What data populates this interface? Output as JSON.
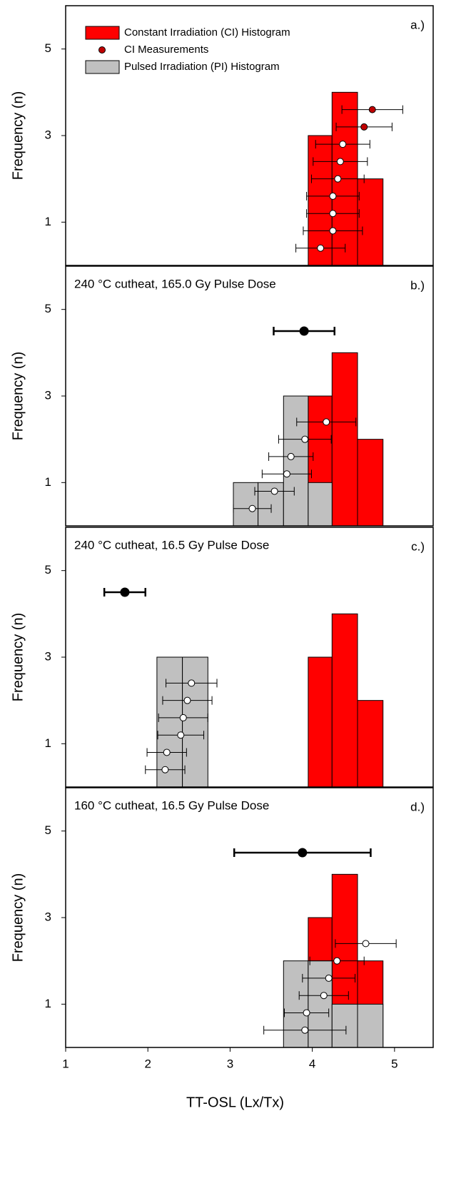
{
  "chart_data": [
    {
      "type": "histogram",
      "panel_label": "a.)",
      "ylabel": "Frequency (n)",
      "xlim": [
        1,
        5.47
      ],
      "ylim": [
        0,
        6
      ],
      "yticks": [
        1,
        3,
        5
      ],
      "legend": [
        {
          "name": "Constant Irradiation (CI) Histogram",
          "color": "#ff0000",
          "marker": "rect"
        },
        {
          "name": "CI Measurements",
          "color": "#c00000",
          "marker": "circle"
        },
        {
          "name": "Pulsed Irradiation (PI) Histogram",
          "color": "#c0c0c0",
          "marker": "rect"
        }
      ],
      "series": [
        {
          "color": "#ff0000",
          "bins": [
            3.95,
            4.24,
            4.55,
            4.86
          ],
          "counts": [
            3,
            4,
            2
          ]
        }
      ],
      "points": {
        "x": [
          4.1,
          4.25,
          4.25,
          4.25,
          4.31,
          4.34,
          4.37,
          4.63,
          4.73
        ],
        "values": [
          0.4,
          0.8,
          1.2,
          1.6,
          2.0,
          2.4,
          2.8,
          3.2,
          3.6
        ],
        "errors": [
          0.3,
          0.36,
          0.32,
          0.32,
          0.32,
          0.33,
          0.33,
          0.34,
          0.37
        ],
        "colors": [
          "#ffffff",
          "#ffffff",
          "#ffffff",
          "#ffffff",
          "#ffffff",
          "#ffffff",
          "#ffffff",
          "#c00000",
          "#c00000"
        ]
      }
    },
    {
      "type": "histogram",
      "panel_label": "b.)",
      "title": "240 °C cutheat, 165.0 Gy Pulse Dose",
      "ylabel": "Frequency (n)",
      "xlim": [
        1,
        5.47
      ],
      "ylim": [
        0,
        6
      ],
      "yticks": [
        1,
        3,
        5
      ],
      "series": [
        {
          "color": "#ff0000",
          "bins": [
            3.95,
            4.24,
            4.55,
            4.86
          ],
          "counts": [
            3,
            4,
            2
          ]
        },
        {
          "color": "#c0c0c0",
          "bins": [
            3.04,
            3.34,
            3.65,
            3.95,
            4.24
          ],
          "counts": [
            1,
            1,
            3,
            1
          ]
        }
      ],
      "points": {
        "x": [
          3.27,
          3.54,
          3.69,
          3.74,
          3.91,
          4.17
        ],
        "values": [
          0.4,
          0.8,
          1.2,
          1.6,
          2.0,
          2.4
        ],
        "errors": [
          0.23,
          0.24,
          0.3,
          0.27,
          0.32,
          0.36
        ],
        "colors": [
          "#ffffff",
          "#ffffff",
          "#ffffff",
          "#ffffff",
          "#ffffff",
          "#ffffff"
        ]
      },
      "summary": {
        "x": 3.9,
        "value": 4.5,
        "error": 0.37,
        "color": "#000000"
      }
    },
    {
      "type": "histogram",
      "panel_label": "c.)",
      "title": "240 °C cutheat, 16.5 Gy Pulse Dose",
      "ylabel": "Frequency (n)",
      "xlim": [
        1,
        5.47
      ],
      "ylim": [
        0,
        6
      ],
      "yticks": [
        1,
        3,
        5
      ],
      "series": [
        {
          "color": "#ff0000",
          "bins": [
            3.95,
            4.24,
            4.55,
            4.86
          ],
          "counts": [
            3,
            4,
            2
          ]
        },
        {
          "color": "#c0c0c0",
          "bins": [
            2.11,
            2.42,
            2.73
          ],
          "counts": [
            3,
            3
          ]
        }
      ],
      "points": {
        "x": [
          2.21,
          2.23,
          2.4,
          2.43,
          2.48,
          2.53
        ],
        "values": [
          0.4,
          0.8,
          1.2,
          1.6,
          2.0,
          2.4
        ],
        "errors": [
          0.24,
          0.24,
          0.28,
          0.3,
          0.3,
          0.31
        ],
        "colors": [
          "#ffffff",
          "#ffffff",
          "#ffffff",
          "#ffffff",
          "#ffffff",
          "#ffffff"
        ]
      },
      "summary": {
        "x": 1.72,
        "value": 4.5,
        "error": 0.25,
        "color": "#000000"
      }
    },
    {
      "type": "histogram",
      "panel_label": "d.)",
      "title": "160 °C cutheat, 16.5 Gy Pulse Dose",
      "ylabel": "Frequency (n)",
      "xlabel": "TT-OSL (Lx/Tx)",
      "xlim": [
        1,
        5.47
      ],
      "ylim": [
        0,
        6
      ],
      "yticks": [
        1,
        3,
        5
      ],
      "xticks": [
        1,
        2,
        3,
        4,
        5
      ],
      "series": [
        {
          "color": "#ff0000",
          "bins": [
            3.95,
            4.24,
            4.55,
            4.86
          ],
          "counts": [
            3,
            4,
            2
          ]
        },
        {
          "color": "#c0c0c0",
          "bins": [
            3.65,
            3.95,
            4.24,
            4.55,
            4.86
          ],
          "counts": [
            2,
            2,
            1,
            1
          ]
        }
      ],
      "points": {
        "x": [
          3.91,
          3.93,
          4.14,
          4.2,
          4.3,
          4.65
        ],
        "values": [
          0.4,
          0.8,
          1.2,
          1.6,
          2.0,
          2.4
        ],
        "errors": [
          0.5,
          0.27,
          0.3,
          0.32,
          0.33,
          0.37
        ],
        "colors": [
          "#ffffff",
          "#ffffff",
          "#ffffff",
          "#ffffff",
          "#ffffff",
          "#ffffff"
        ]
      },
      "summary": {
        "x": 3.88,
        "value": 4.5,
        "error": 0.83,
        "color": "#000000"
      }
    }
  ]
}
